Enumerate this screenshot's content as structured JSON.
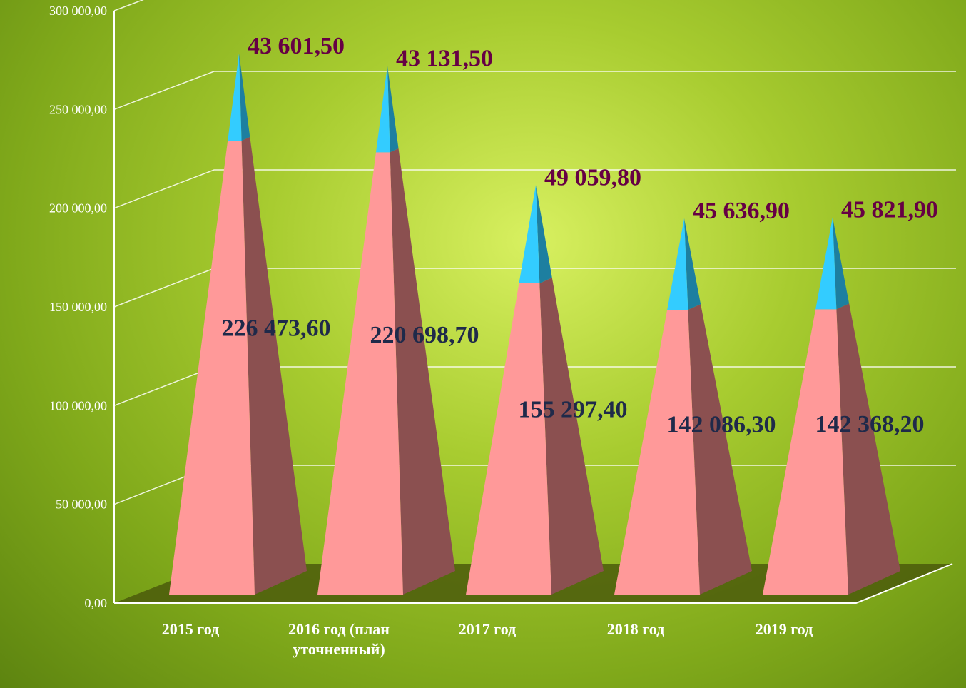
{
  "chart_data": {
    "type": "pyramid",
    "categories": [
      "2015 год",
      "2016 год (план уточненный)",
      "2017 год",
      "2018 год",
      "2019 год"
    ],
    "series": [
      {
        "color": "#ff9999",
        "side_color": "#8b5050",
        "values": [
          226473.6,
          220698.7,
          155297.4,
          142086.3,
          142368.2
        ],
        "value_labels": [
          "226 473,60",
          "220 698,70",
          "155 297,40",
          "142 086,30",
          "142 368,20"
        ]
      },
      {
        "color": "#33ccff",
        "side_color": "#1d7fa0",
        "values": [
          43601.5,
          43131.5,
          49059.8,
          45636.9,
          45821.9
        ],
        "value_labels": [
          "43 601,50",
          "43 131,50",
          "49 059,80",
          "45 636,90",
          "45 821,90"
        ]
      }
    ],
    "ylim": [
      0,
      300000
    ],
    "yticks": [
      {
        "value": 0,
        "label": "0,00"
      },
      {
        "value": 50000,
        "label": "50 000,00"
      },
      {
        "value": 100000,
        "label": "100 000,00"
      },
      {
        "value": 150000,
        "label": "150 000,00"
      },
      {
        "value": 200000,
        "label": "200 000,00"
      },
      {
        "value": 250000,
        "label": "250 000,00"
      },
      {
        "value": 300000,
        "label": "300 000,00"
      }
    ],
    "grid": true
  }
}
